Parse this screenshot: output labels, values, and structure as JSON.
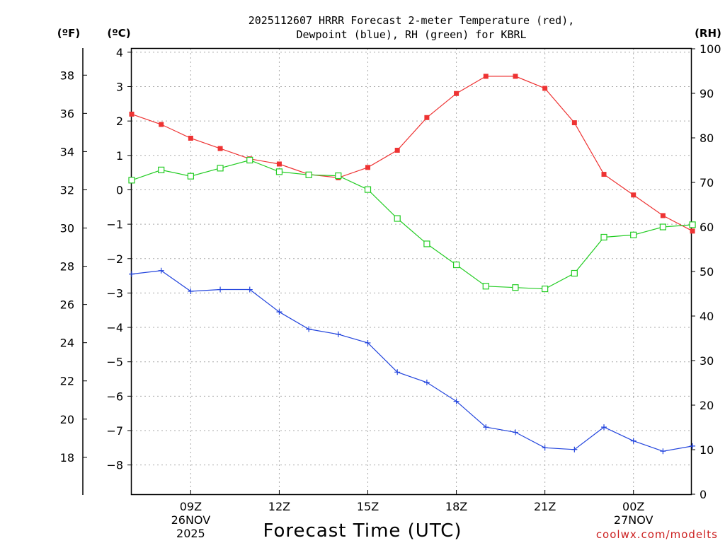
{
  "chart_data": {
    "type": "line",
    "title_line1": "2025112607 HRRR Forecast 2-meter Temperature (red),",
    "title_line2": "Dewpoint (blue), RH (green) for KBRL",
    "xlabel": "Forecast Time (UTC)",
    "watermark": "coolwx.com/modelts",
    "hours": [
      7,
      8,
      9,
      10,
      11,
      12,
      13,
      14,
      15,
      16,
      17,
      18,
      19,
      20,
      21,
      22,
      23,
      24,
      25,
      26
    ],
    "xlim": [
      7,
      25.95
    ],
    "x_ticks": [
      {
        "hour": 9,
        "label": "09Z",
        "sub1": "26NOV",
        "sub2": "2025"
      },
      {
        "hour": 12,
        "label": "12Z",
        "sub1": "",
        "sub2": ""
      },
      {
        "hour": 15,
        "label": "15Z",
        "sub1": "",
        "sub2": ""
      },
      {
        "hour": 18,
        "label": "18Z",
        "sub1": "",
        "sub2": ""
      },
      {
        "hour": 21,
        "label": "21Z",
        "sub1": "",
        "sub2": ""
      },
      {
        "hour": 24,
        "label": "00Z",
        "sub1": "27NOV",
        "sub2": ""
      }
    ],
    "left_axis_c": {
      "unit": "(ºC)",
      "range": [
        -8.85,
        4.1
      ],
      "ticks": [
        "4",
        "3",
        "2",
        "1",
        "0",
        "−1",
        "−2",
        "−3",
        "−4",
        "−5",
        "−6",
        "−7",
        "−8"
      ],
      "tick_values": [
        4,
        3,
        2,
        1,
        0,
        -1,
        -2,
        -3,
        -4,
        -5,
        -6,
        -7,
        -8
      ]
    },
    "left_axis_f": {
      "unit": "(ºF)",
      "ticks": [
        "38",
        "36",
        "34",
        "32",
        "30",
        "28",
        "26",
        "24",
        "22",
        "20",
        "18"
      ],
      "tick_values": [
        38,
        36,
        34,
        32,
        30,
        28,
        26,
        24,
        22,
        20,
        18
      ]
    },
    "right_axis_rh": {
      "unit": "(RH)",
      "range": [
        0,
        100
      ],
      "ticks": [
        "100",
        "90",
        "80",
        "70",
        "60",
        "50",
        "40",
        "30",
        "20",
        "10",
        "0"
      ],
      "tick_values": [
        100,
        90,
        80,
        70,
        60,
        50,
        40,
        30,
        20,
        10,
        0
      ]
    },
    "series": [
      {
        "name": "Temperature",
        "unit": "C",
        "color": "#ee3333",
        "marker": "filled-square",
        "values": [
          2.2,
          1.9,
          1.5,
          1.2,
          0.9,
          0.75,
          0.45,
          0.35,
          0.65,
          1.15,
          2.1,
          2.8,
          3.3,
          3.3,
          2.95,
          1.95,
          0.45,
          -0.15,
          -0.75,
          -1.2
        ]
      },
      {
        "name": "Dewpoint",
        "unit": "C",
        "color": "#2244dd",
        "marker": "plus",
        "values": [
          -2.45,
          -2.35,
          -2.95,
          -2.9,
          -2.9,
          -3.55,
          -4.05,
          -4.2,
          -4.45,
          -5.3,
          -5.6,
          -6.15,
          -6.9,
          -7.05,
          -7.5,
          -7.55,
          -6.9,
          -7.3,
          -7.6,
          -7.45
        ]
      },
      {
        "name": "RH",
        "unit": "%",
        "color": "#22cc22",
        "marker": "open-square",
        "values": [
          70.5,
          72.8,
          71.4,
          73.2,
          75.0,
          72.4,
          71.7,
          71.5,
          68.4,
          61.9,
          56.2,
          51.5,
          46.7,
          46.4,
          46.1,
          49.6,
          57.7,
          58.2,
          60.0,
          60.5
        ]
      }
    ]
  }
}
